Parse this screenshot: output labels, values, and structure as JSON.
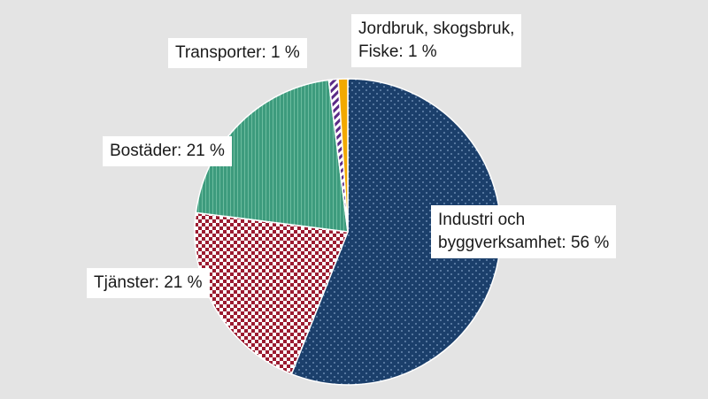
{
  "chart_data": {
    "type": "pie",
    "start_angle_deg": 0,
    "direction": "clockwise",
    "slices": [
      {
        "name": "Industri och byggverksamhet",
        "value": 56,
        "label_lines": [
          "Industri och",
          "byggverksamhet: 56 %"
        ],
        "color": "#1b3f6b",
        "pattern": "dots"
      },
      {
        "name": "Tjänster",
        "value": 21,
        "label_lines": [
          "Tjänster: 21 %"
        ],
        "color": "#9b1b30",
        "pattern": "checker"
      },
      {
        "name": "Bostäder",
        "value": 21,
        "label_lines": [
          "Bostäder: 21 %"
        ],
        "color": "#3d9b7d",
        "pattern": "fine-lines"
      },
      {
        "name": "Transporter",
        "value": 1,
        "label_lines": [
          "Transporter: 1 %"
        ],
        "color": "#5b2a86",
        "pattern": "diagonal-stripes"
      },
      {
        "name": "Jordbruk, skogsbruk, Fiske",
        "value": 1,
        "label_lines": [
          "Jordbruk, skogsbruk,",
          "Fiske: 1 %"
        ],
        "color": "#f2a900",
        "pattern": "solid"
      }
    ]
  }
}
